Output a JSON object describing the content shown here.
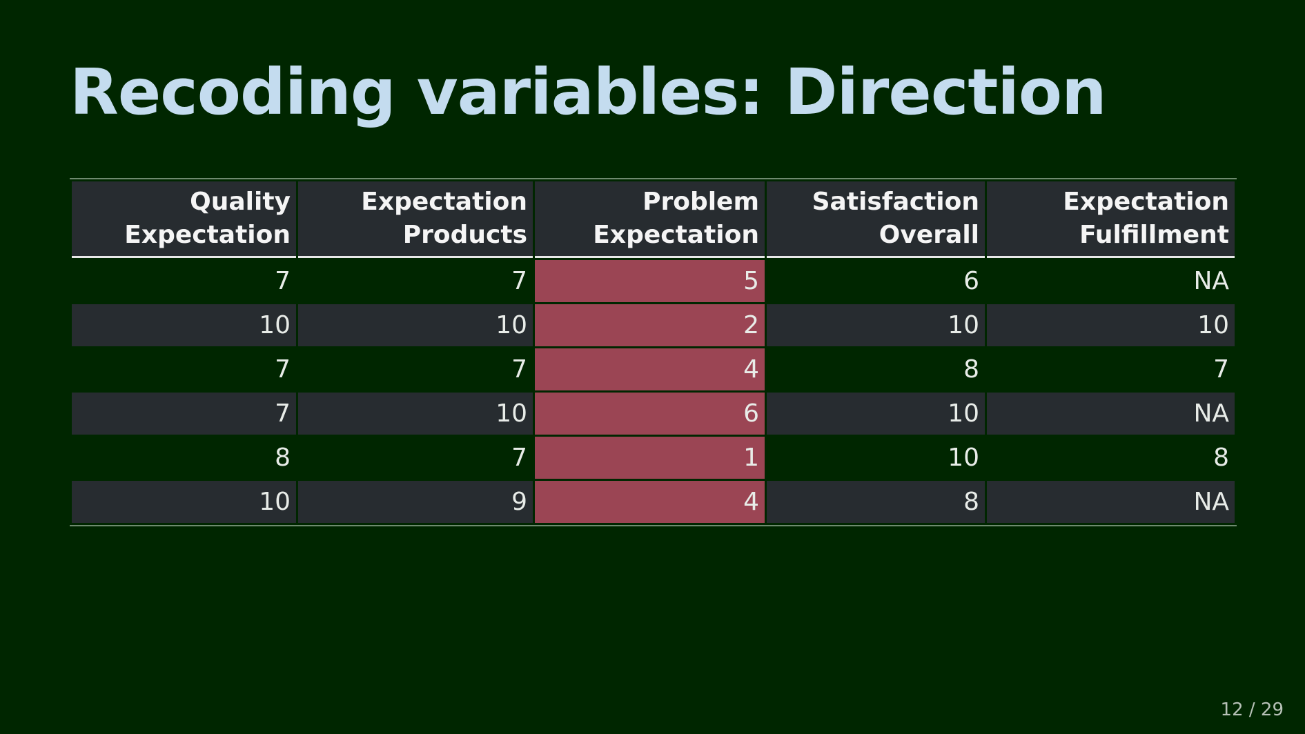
{
  "slide": {
    "title": "Recoding variables: Direction",
    "page_number": "12 / 29"
  },
  "table": {
    "highlight_color": "#9b4554",
    "columns": [
      {
        "line1": "Quality",
        "line2": "Expectation"
      },
      {
        "line1": "Expectation",
        "line2": "Products"
      },
      {
        "line1": "Problem",
        "line2": "Expectation",
        "highlighted": true
      },
      {
        "line1": "Satisfaction",
        "line2": "Overall"
      },
      {
        "line1": "Expectation",
        "line2": "Fulfillment"
      }
    ],
    "rows": [
      [
        "7",
        "7",
        "5",
        "6",
        "NA"
      ],
      [
        "10",
        "10",
        "2",
        "10",
        "10"
      ],
      [
        "7",
        "7",
        "4",
        "8",
        "7"
      ],
      [
        "7",
        "10",
        "6",
        "10",
        "NA"
      ],
      [
        "8",
        "7",
        "1",
        "10",
        "8"
      ],
      [
        "10",
        "9",
        "4",
        "8",
        "NA"
      ]
    ]
  }
}
